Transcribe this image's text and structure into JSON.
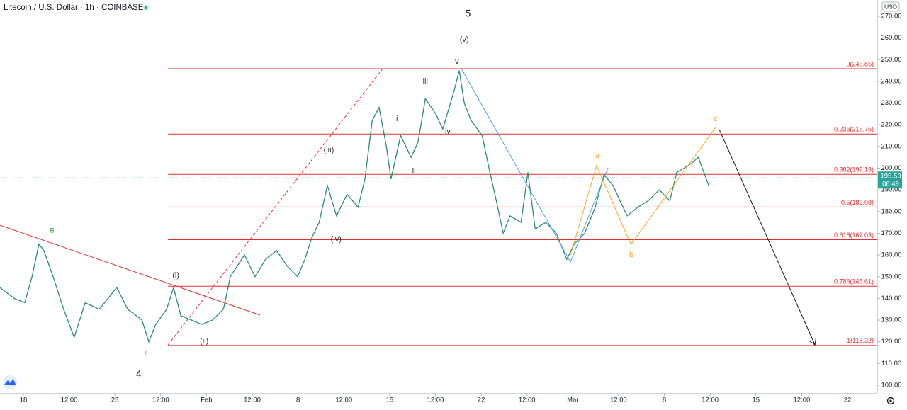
{
  "chart_data": {
    "type": "line",
    "title": "Litecoin / U.S. Dollar · 1h · COINBASE",
    "currency": "USD",
    "color": "#2b8a78",
    "x": [
      -0.51,
      -0.2,
      0.03,
      0.19,
      0.34,
      0.45,
      0.65,
      0.88,
      1.11,
      1.35,
      1.66,
      2.04,
      2.28,
      2.59,
      2.74,
      2.89,
      3.13,
      3.28,
      3.44,
      3.67,
      3.9,
      4.13,
      4.37,
      4.52,
      4.83,
      5.06,
      5.29,
      5.53,
      5.76,
      5.99,
      6.15,
      6.3,
      6.46,
      6.64,
      6.84,
      7.07,
      7.31,
      7.46,
      7.62,
      7.77,
      7.93,
      8.03,
      8.24,
      8.47,
      8.62,
      8.78,
      9.01,
      9.16,
      9.4,
      9.52,
      9.63,
      9.78,
      10.02,
      10.17,
      10.33,
      10.48,
      10.63,
      10.87,
      11.02,
      11.18,
      11.41,
      11.64,
      11.87,
      12.03,
      12.26,
      12.49,
      12.68,
      12.88,
      13.03,
      13.19,
      13.42,
      13.65,
      13.89,
      14.12,
      14.27,
      14.43,
      14.58,
      14.74,
      14.97
    ],
    "values": [
      145,
      140,
      138,
      150,
      165,
      162,
      150,
      135,
      122,
      138,
      135,
      145,
      135,
      130,
      120,
      128,
      135,
      145,
      132,
      130,
      128,
      130,
      135,
      150,
      160,
      150,
      158,
      162,
      155,
      150,
      158,
      168,
      175,
      192,
      178,
      188,
      182,
      195,
      222,
      228,
      210,
      195,
      215,
      205,
      212,
      232,
      225,
      218,
      235,
      245,
      230,
      222,
      215,
      200,
      185,
      170,
      178,
      175,
      198,
      172,
      175,
      170,
      158,
      165,
      170,
      182,
      197,
      192,
      185,
      178,
      182,
      185,
      190,
      185,
      198,
      200,
      202,
      205,
      192
    ],
    "xlim": [
      -0.51,
      18.65
    ],
    "ylim": [
      96.4,
      277.5
    ],
    "xticks": [
      {
        "value": 0,
        "label": "18"
      },
      {
        "value": 1,
        "label": "12:00"
      },
      {
        "value": 2,
        "label": "25"
      },
      {
        "value": 3,
        "label": "12:00"
      },
      {
        "value": 4,
        "label": "Feb"
      },
      {
        "value": 5,
        "label": "12:00"
      },
      {
        "value": 6,
        "label": "8"
      },
      {
        "value": 7,
        "label": "12:00"
      },
      {
        "value": 8,
        "label": "15"
      },
      {
        "value": 9,
        "label": "12:00"
      },
      {
        "value": 10,
        "label": "22"
      },
      {
        "value": 11,
        "label": "12:00"
      },
      {
        "value": 12,
        "label": "Mar"
      },
      {
        "value": 13,
        "label": "12:00"
      },
      {
        "value": 14,
        "label": "8"
      },
      {
        "value": 15,
        "label": "12:00"
      },
      {
        "value": 16,
        "label": "15"
      },
      {
        "value": 17,
        "label": "12:00"
      },
      {
        "value": 18,
        "label": "22"
      }
    ],
    "yticks": [
      {
        "value": 100,
        "label": "100.00"
      },
      {
        "value": 110,
        "label": "110.00"
      },
      {
        "value": 120,
        "label": "120.00"
      },
      {
        "value": 130,
        "label": "130.00"
      },
      {
        "value": 140,
        "label": "140.00"
      },
      {
        "value": 150,
        "label": "150.00"
      },
      {
        "value": 160,
        "label": "160.00"
      },
      {
        "value": 170,
        "label": "170.00"
      },
      {
        "value": 180,
        "label": "180.00"
      },
      {
        "value": 190,
        "label": "190.00"
      },
      {
        "value": 200,
        "label": "200.00"
      },
      {
        "value": 210,
        "label": "210.00"
      },
      {
        "value": 220,
        "label": "220.00"
      },
      {
        "value": 230,
        "label": "230.00"
      },
      {
        "value": 240,
        "label": "240.00"
      },
      {
        "value": 250,
        "label": "250.00"
      },
      {
        "value": 260,
        "label": "260.00"
      },
      {
        "value": 270,
        "label": "270.00"
      }
    ],
    "last_price": {
      "value": 195.53,
      "label": "195.53",
      "countdown": "06:49",
      "color": "#26a69a"
    },
    "fib": {
      "color": "#e03030",
      "x_start": 3.16,
      "levels": [
        {
          "value": 245.85,
          "label": "0(245.85)"
        },
        {
          "value": 215.75,
          "label": "0.236(215.75)"
        },
        {
          "value": 197.13,
          "label": "0.382(197.13)"
        },
        {
          "value": 182.08,
          "label": "0.5(182.08)"
        },
        {
          "value": 167.03,
          "label": "0.618(167.03)"
        },
        {
          "value": 145.61,
          "label": "0.786(145.61)"
        },
        {
          "value": 118.32,
          "label": "1(118.32)"
        }
      ]
    },
    "lines": [
      {
        "color": "#e03030",
        "dashed": false,
        "arrow": false,
        "x": [
          -0.51,
          5.17
        ],
        "y": [
          173.7,
          132.3
        ]
      },
      {
        "color": "#e03030",
        "dashed": true,
        "arrow": false,
        "x": [
          3.16,
          7.85
        ],
        "y": [
          118.6,
          245.9
        ]
      },
      {
        "color": "#4a9fd8",
        "dashed": false,
        "arrow": false,
        "x": [
          9.55,
          11.95,
          12.77
        ],
        "y": [
          246.5,
          156.8,
          200.2
        ]
      },
      {
        "color": "#f5a623",
        "dashed": false,
        "arrow": false,
        "x": [
          11.95,
          12.52,
          13.27,
          15.12
        ],
        "y": [
          160.0,
          201.2,
          164.9,
          218.8
        ]
      },
      {
        "color": "#131722",
        "dashed": false,
        "arrow": true,
        "x": [
          15.2,
          17.29
        ],
        "y": [
          217.8,
          118.6
        ]
      }
    ],
    "annotations": [
      {
        "text": "5",
        "x": 9.71,
        "y": 271.0,
        "color": "#131722",
        "size": 14
      },
      {
        "text": "(v)",
        "x": 9.63,
        "y": 259.2,
        "color": "#333333",
        "size": 11
      },
      {
        "text": "v",
        "x": 9.47,
        "y": 249.1,
        "color": "#333333",
        "size": 11
      },
      {
        "text": "iii",
        "x": 8.78,
        "y": 240.0,
        "color": "#333333",
        "size": 11
      },
      {
        "text": "i",
        "x": 8.16,
        "y": 222.7,
        "color": "#333333",
        "size": 11
      },
      {
        "text": "iv",
        "x": 9.27,
        "y": 216.8,
        "color": "#333333",
        "size": 11
      },
      {
        "text": "ii",
        "x": 8.53,
        "y": 198.5,
        "color": "#333333",
        "size": 11
      },
      {
        "text": "(iii)",
        "x": 6.67,
        "y": 208.3,
        "color": "#333333",
        "size": 11
      },
      {
        "text": "(iv)",
        "x": 6.83,
        "y": 167.2,
        "color": "#333333",
        "size": 11
      },
      {
        "text": "(i)",
        "x": 3.33,
        "y": 150.6,
        "color": "#333333",
        "size": 11
      },
      {
        "text": "(ii)",
        "x": 3.95,
        "y": 120.2,
        "color": "#333333",
        "size": 11
      },
      {
        "text": "B",
        "x": 0.63,
        "y": 171.1,
        "color": "#2e8b2e",
        "size": 9
      },
      {
        "text": "c",
        "x": 2.68,
        "y": 114.7,
        "color": "#2e8b2e",
        "size": 9
      },
      {
        "text": "4",
        "x": 2.52,
        "y": 104.9,
        "color": "#131722",
        "size": 14
      },
      {
        "text": "a",
        "x": 12.54,
        "y": 205.7,
        "color": "#f5a623",
        "size": 11
      },
      {
        "text": "b",
        "x": 13.28,
        "y": 160.0,
        "color": "#f5a623",
        "size": 11
      },
      {
        "text": "c",
        "x": 15.12,
        "y": 222.7,
        "color": "#f5a623",
        "size": 11
      }
    ]
  }
}
